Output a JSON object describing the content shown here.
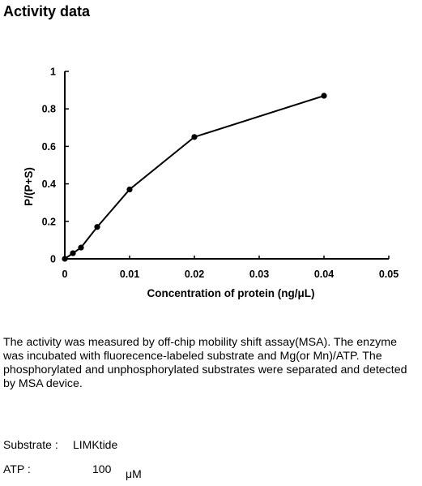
{
  "page": {
    "title": "Activity data"
  },
  "chart_data": {
    "type": "line",
    "xlabel": "Concentration of protein (ng/μL)",
    "ylabel": "P/(P+S)",
    "xlim": [
      0,
      0.05
    ],
    "ylim": [
      0,
      1
    ],
    "x_ticks": [
      "0",
      "0.01",
      "0.02",
      "0.03",
      "0.04",
      "0.05"
    ],
    "x_tick_values": [
      0,
      0.01,
      0.02,
      0.03,
      0.04,
      0.05
    ],
    "y_ticks": [
      "0",
      "0.2",
      "0.4",
      "0.6",
      "0.8",
      "1"
    ],
    "y_tick_values": [
      0,
      0.2,
      0.4,
      0.6,
      0.8,
      1
    ],
    "x": [
      0,
      0.00125,
      0.0025,
      0.005,
      0.01,
      0.02,
      0.04
    ],
    "y": [
      0,
      0.03,
      0.06,
      0.17,
      0.37,
      0.65,
      0.87
    ],
    "grid": false,
    "marker": "circle"
  },
  "description": "The activity was measured by off-chip mobility shift assay(MSA). The enzyme was incubated with fluorecence-labeled  substrate and Mg(or Mn)/ATP. The phosphorylated and unphosphorylated substrates were separated and detected by MSA device.",
  "substrate": {
    "label": "Substrate :",
    "value": "LIMKtide"
  },
  "atp": {
    "label": "ATP :",
    "value": "100",
    "unit": "μM"
  }
}
